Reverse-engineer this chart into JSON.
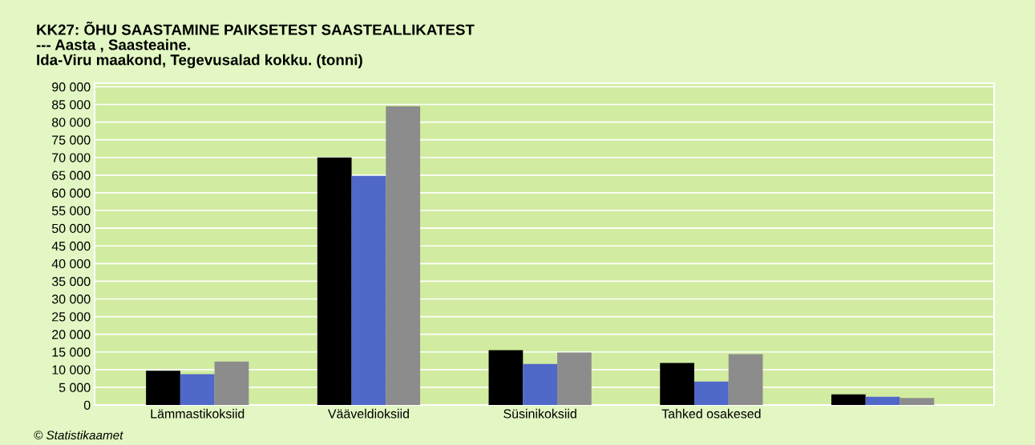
{
  "chart_data": {
    "type": "bar",
    "title": "KK27: ÕHU SAASTAMINE PAIKSETEST SAASTEALLIKATEST\n--- Aasta , Saasteaine.\nIda-Viru maakond, Tegevusalad kokku. (tonni)",
    "categories": [
      "Lämmastikoksiid",
      "Vääveldioksiid",
      "Süsinikoksiid",
      "Tahked osakesed",
      null
    ],
    "series": [
      {
        "color": "#000000",
        "values": [
          9700,
          70000,
          15500,
          11900,
          3000
        ]
      },
      {
        "color": "#5068c8",
        "values": [
          8700,
          64800,
          11600,
          6600,
          2300
        ]
      },
      {
        "color": "#8c8c8c",
        "values": [
          12300,
          84500,
          14800,
          14400,
          2000
        ]
      }
    ],
    "ylim": [
      0,
      91000
    ],
    "yticks": [
      {
        "value": 0,
        "label": "0"
      },
      {
        "value": 5000,
        "label": "5 000"
      },
      {
        "value": 10000,
        "label": "10 000"
      },
      {
        "value": 15000,
        "label": "15 000"
      },
      {
        "value": 20000,
        "label": "20 000"
      },
      {
        "value": 25000,
        "label": "25 000"
      },
      {
        "value": 30000,
        "label": "30 000"
      },
      {
        "value": 35000,
        "label": "35 000"
      },
      {
        "value": 40000,
        "label": "40 000"
      },
      {
        "value": 45000,
        "label": "45 000"
      },
      {
        "value": 50000,
        "label": "50 000"
      },
      {
        "value": 55000,
        "label": "55 000"
      },
      {
        "value": 60000,
        "label": "60 000"
      },
      {
        "value": 65000,
        "label": "65 000"
      },
      {
        "value": 70000,
        "label": "70 000"
      },
      {
        "value": 75000,
        "label": "75 000"
      },
      {
        "value": 80000,
        "label": "80 000"
      },
      {
        "value": 85000,
        "label": "85 000"
      },
      {
        "value": 90000,
        "label": "90 000"
      }
    ],
    "grid": "y",
    "annotations": [
      "© Statistikaamet"
    ]
  }
}
